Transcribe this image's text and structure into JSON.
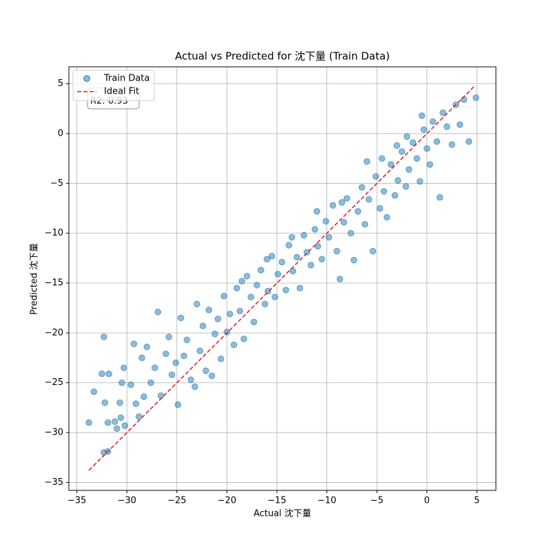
{
  "chart_data": {
    "type": "scatter",
    "title": "Actual vs Predicted for 沈下量 (Train Data)",
    "x_label": "Actual 沈下量",
    "y_label": "Predicted 沈下量",
    "annotation": "R2: 0.93",
    "xlim": [
      -35.8,
      6.9
    ],
    "ylim": [
      -35.8,
      6.7
    ],
    "xticks": [
      {
        "value": -35,
        "label": "−35"
      },
      {
        "value": -30,
        "label": "−30"
      },
      {
        "value": -25,
        "label": "−25"
      },
      {
        "value": -20,
        "label": "−20"
      },
      {
        "value": -15,
        "label": "−15"
      },
      {
        "value": -10,
        "label": "−10"
      },
      {
        "value": -5,
        "label": "−5"
      },
      0,
      5
    ],
    "yticks": [
      {
        "value": -35,
        "label": "−35"
      },
      {
        "value": -30,
        "label": "−30"
      },
      {
        "value": -25,
        "label": "−25"
      },
      {
        "value": -20,
        "label": "−20"
      },
      {
        "value": -15,
        "label": "−15"
      },
      {
        "value": -10,
        "label": "−10"
      },
      {
        "value": -5,
        "label": "−5"
      },
      0,
      5
    ],
    "grid": true,
    "legend": "upper left",
    "series": [
      {
        "name": "Train Data",
        "color": "#1f77b4",
        "x": [
          -33.8,
          -33.3,
          -32.5,
          -32.3,
          -32.2,
          -31.8,
          -31.9,
          -32.3,
          -31.9,
          -31.2,
          -31,
          -30.7,
          -30.5,
          -30.3,
          -30.6,
          -30.2,
          -29.6,
          -29.3,
          -29.1,
          -28.8,
          -28.5,
          -28.3,
          -28,
          -27.6,
          -27.2,
          -26.9,
          -26.6,
          -26.1,
          -25.8,
          -25.5,
          -25.1,
          -24.9,
          -24.6,
          -24.3,
          -24,
          -23.6,
          -23.2,
          -23,
          -22.7,
          -22.4,
          -22.1,
          -21.8,
          -21.5,
          -21.2,
          -20.9,
          -20.6,
          -20.3,
          -20,
          -19.7,
          -19.3,
          -19,
          -18.7,
          -18.3,
          -18,
          -17.6,
          -17.3,
          -17,
          -16.6,
          -16.2,
          -15.9,
          -15.5,
          -15.2,
          -14.9,
          -14.5,
          -14.1,
          -13.8,
          -13.4,
          -13,
          -12.7,
          -12.3,
          -12,
          -11.6,
          -11.2,
          -10.9,
          -10.5,
          -10.1,
          -9.8,
          -9.4,
          -9,
          -8.7,
          -8.3,
          -8,
          -7.6,
          -7.3,
          -6.9,
          -6.5,
          -6.2,
          -5.8,
          -5.4,
          -5.1,
          -4.7,
          -4.3,
          -4,
          -3.6,
          -3.2,
          -2.9,
          -2.5,
          -2.1,
          -1.8,
          -1.4,
          -1,
          -0.7,
          -0.3,
          0,
          0.3,
          0.6,
          1,
          1.3,
          1.6,
          2,
          2.5,
          2.9,
          3.3,
          3.7,
          4.2,
          4.9,
          -6,
          -4.5,
          -8.5,
          -11,
          -13.5,
          -16,
          -18.5,
          -2,
          -0.5,
          -3
        ],
        "y": [
          -29,
          -25.9,
          -24.1,
          -20.4,
          -27,
          -24.1,
          -29,
          -32,
          -31.9,
          -28.9,
          -29.6,
          -27,
          -25,
          -23.5,
          -28.5,
          -29.3,
          -25.2,
          -21.1,
          -27.1,
          -28.4,
          -22.5,
          -26.4,
          -21.4,
          -25,
          -23.5,
          -17.9,
          -26.3,
          -22.1,
          -20.4,
          -24.2,
          -23,
          -27.2,
          -18.5,
          -22.3,
          -20.7,
          -24.7,
          -25.4,
          -17.1,
          -21.8,
          -19.3,
          -23.8,
          -17.7,
          -24.3,
          -20.1,
          -18.6,
          -22.6,
          -16.3,
          -19.9,
          -18.1,
          -21.2,
          -15.5,
          -17.8,
          -20.6,
          -14.3,
          -16.4,
          -18.9,
          -15.2,
          -13.7,
          -17.1,
          -15.8,
          -12.3,
          -16.4,
          -14.1,
          -12.9,
          -15.7,
          -11.2,
          -13.8,
          -12.4,
          -15.5,
          -10.2,
          -11.9,
          -13.2,
          -9.6,
          -11.3,
          -12.6,
          -8.8,
          -10.4,
          -7.2,
          -11.8,
          -14.6,
          -8.9,
          -6.5,
          -10,
          -12.7,
          -7.8,
          -5.4,
          -9.1,
          -6.6,
          -11.8,
          -4.3,
          -7.5,
          -5.8,
          -8.4,
          -3.1,
          -6.2,
          -4.7,
          -1.8,
          -5.3,
          -3.6,
          -0.9,
          -2.5,
          -4.8,
          0.4,
          -1.5,
          -3.1,
          1.2,
          -0.8,
          -6.4,
          2.1,
          0.7,
          -1.1,
          2.9,
          0.9,
          3.4,
          -0.8,
          3.6,
          -2.8,
          -2.5,
          -6.9,
          -7.8,
          -10.4,
          -12.6,
          -14.8,
          -0.3,
          1.8,
          -1.2
        ]
      }
    ],
    "ideal_fit": {
      "name": "Ideal Fit",
      "color": "#d62728",
      "x": [
        -33.8,
        4.8
      ],
      "y": [
        -33.8,
        4.8
      ]
    }
  }
}
